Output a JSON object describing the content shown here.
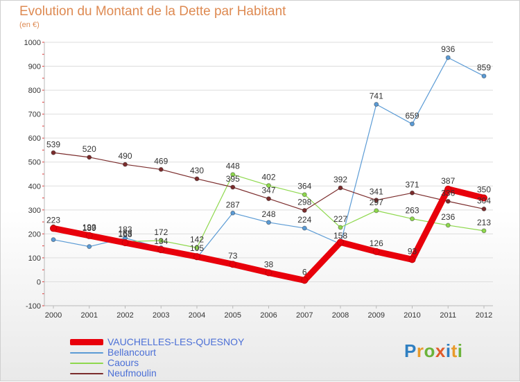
{
  "title": "Evolution du Montant de la Dette par Habitant",
  "subtitle": "(en €)",
  "logo": "Proxiti",
  "colors": {
    "title": "#de8a52",
    "grid": "#dddddd",
    "axis": "#b8b8b8",
    "tick_text": "#333333",
    "legend_text": "#4b6fd6"
  },
  "chart_data": {
    "type": "line",
    "title": "Evolution du Montant de la Dette par Habitant",
    "subtitle": "(en €)",
    "x": [
      "2000",
      "2001",
      "2002",
      "2003",
      "2004",
      "2005",
      "2006",
      "2007",
      "2008",
      "2009",
      "2010",
      "2011",
      "2012"
    ],
    "ylim": [
      -100,
      1000
    ],
    "yticks": [
      -100,
      0,
      100,
      200,
      300,
      400,
      500,
      600,
      700,
      800,
      900,
      1000
    ],
    "grid": "horizontal",
    "legend_position": "bottom-left",
    "series": [
      {
        "name": "VAUCHELLES-LES-QUESNOY",
        "color": "#e8000b",
        "weight": "thick",
        "values": [
          223,
          193,
          163,
          134,
          105,
          73,
          38,
          6,
          165,
          126,
          93,
          387,
          350
        ],
        "labels": [
          "223",
          "193",
          "163",
          "134",
          "105",
          "73",
          "38",
          "6",
          "",
          "126",
          "93",
          "387",
          "350"
        ]
      },
      {
        "name": "Bellancourt",
        "color": "#5b9bd5",
        "weight": "thin",
        "values": [
          176,
          147,
          183,
          142,
          100,
          287,
          248,
          224,
          158,
          741,
          659,
          936,
          859
        ],
        "labels": [
          "",
          "",
          "183",
          "",
          "",
          "287",
          "248",
          "224",
          "158",
          "741",
          "659",
          "936",
          "859"
        ]
      },
      {
        "name": "Caours",
        "color": "#8ed84d",
        "weight": "thin",
        "values": [
          230,
          189,
          168,
          172,
          142,
          448,
          402,
          364,
          227,
          297,
          263,
          236,
          213
        ],
        "labels": [
          "",
          "189",
          "168",
          "172",
          "142",
          "448",
          "402",
          "364",
          "227",
          "297",
          "263",
          "236",
          "213"
        ]
      },
      {
        "name": "Neufmoulin",
        "color": "#7b2c2c",
        "weight": "thin",
        "values": [
          539,
          520,
          490,
          469,
          430,
          395,
          347,
          298,
          392,
          341,
          371,
          336,
          304
        ],
        "labels": [
          "539",
          "520",
          "490",
          "469",
          "430",
          "395",
          "347",
          "298",
          "392",
          "341",
          "371",
          "336",
          "304"
        ]
      }
    ]
  }
}
